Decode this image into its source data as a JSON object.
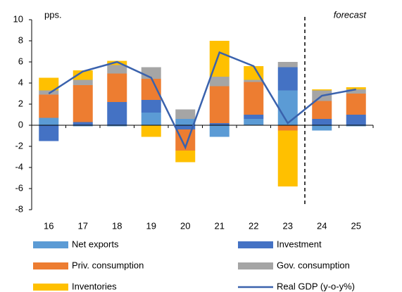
{
  "chart_data": {
    "type": "bar",
    "stacked": true,
    "categories": [
      "16",
      "17",
      "18",
      "19",
      "20",
      "21",
      "22",
      "23",
      "24",
      "25"
    ],
    "series": [
      {
        "name": "Net exports",
        "color": "#5b9bd5",
        "values": [
          0.7,
          -0.1,
          -0.1,
          1.2,
          0.6,
          -1.1,
          0.6,
          3.3,
          -0.5,
          -0.1
        ]
      },
      {
        "name": "Investment",
        "color": "#4472c4",
        "values": [
          -1.5,
          0.3,
          2.2,
          1.2,
          -0.4,
          0.2,
          0.4,
          2.2,
          0.6,
          1.0
        ]
      },
      {
        "name": "Priv. consumption",
        "color": "#ed7d31",
        "values": [
          2.2,
          3.5,
          2.7,
          2.0,
          -2.0,
          3.5,
          3.1,
          -0.5,
          1.7,
          2.0
        ]
      },
      {
        "name": "Gov. consumption",
        "color": "#a5a5a5",
        "values": [
          0.4,
          0.5,
          0.8,
          1.1,
          0.9,
          0.9,
          0.2,
          0.5,
          1.0,
          0.4
        ]
      },
      {
        "name": "Inventories",
        "color": "#ffc000",
        "values": [
          1.2,
          0.9,
          0.4,
          -1.1,
          -1.1,
          3.4,
          1.3,
          -5.3,
          0.1,
          0.2
        ]
      },
      {
        "name": "Real GDP (y-o-y%)",
        "color": "#3a62ad",
        "type": "line",
        "values": [
          3.0,
          5.1,
          6.0,
          4.5,
          -2.1,
          6.9,
          5.6,
          0.2,
          2.8,
          3.4
        ]
      }
    ],
    "ylim": [
      -8,
      10
    ],
    "yticks": [
      -8,
      -6,
      -4,
      -2,
      0,
      2,
      4,
      6,
      8,
      10
    ],
    "grid": false,
    "annotations": [
      {
        "text": "pps."
      },
      {
        "text": "forecast"
      }
    ]
  }
}
